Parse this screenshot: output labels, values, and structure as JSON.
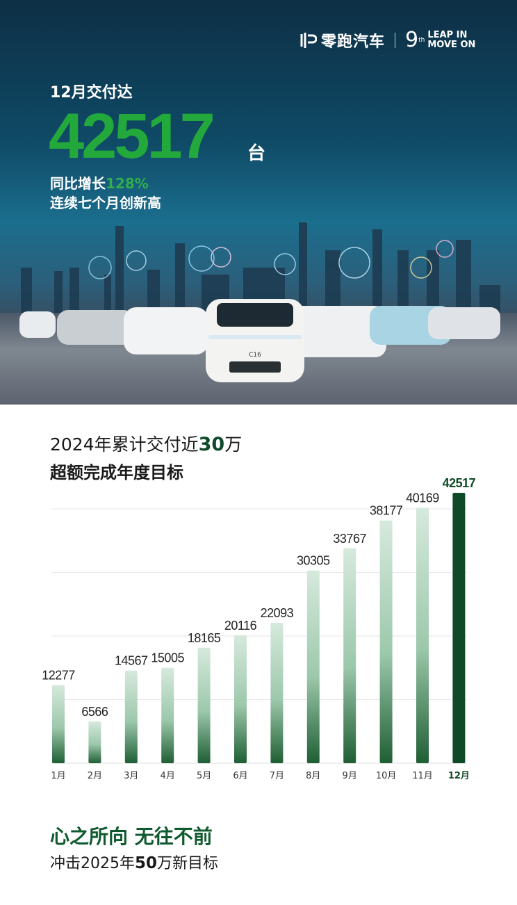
{
  "header": {
    "brand": "零跑汽车",
    "anniversary_number": "9",
    "anniversary_suffix": "th",
    "slogan_line1": "LEAP IN",
    "slogan_line2": "MOVE ON"
  },
  "hero": {
    "subtitle": "12月交付达",
    "big_number": "42517",
    "unit": "台",
    "yoy_prefix": "同比增长",
    "yoy_value": "128%",
    "streak": "连续七个月创新高",
    "car_badge": "C16"
  },
  "chart_section": {
    "title_prefix": "2024年累计交付近",
    "title_highlight": "30",
    "title_suffix": "万",
    "subtitle": "超额完成年度目标"
  },
  "chart_data": {
    "type": "bar",
    "categories": [
      "1月",
      "2月",
      "3月",
      "4月",
      "5月",
      "6月",
      "7月",
      "8月",
      "9月",
      "10月",
      "11月",
      "12月"
    ],
    "values": [
      12277,
      6566,
      14567,
      15005,
      18165,
      20116,
      22093,
      30305,
      33767,
      38177,
      40169,
      42517
    ],
    "ylim": [
      0,
      42517
    ],
    "gridlines": [
      10000,
      20000,
      30000,
      40000
    ],
    "highlight_category": "12月",
    "colors": {
      "bar_light": "#d6e9dd",
      "bar_dark": "#1f5e34",
      "highlight": "#0f4a26",
      "grid": "#e6e6e6"
    }
  },
  "footer": {
    "slogan": "心之所向 无往不前",
    "goal_prefix": "冲击2025年",
    "goal_highlight": "50",
    "goal_suffix": "万新目标"
  }
}
